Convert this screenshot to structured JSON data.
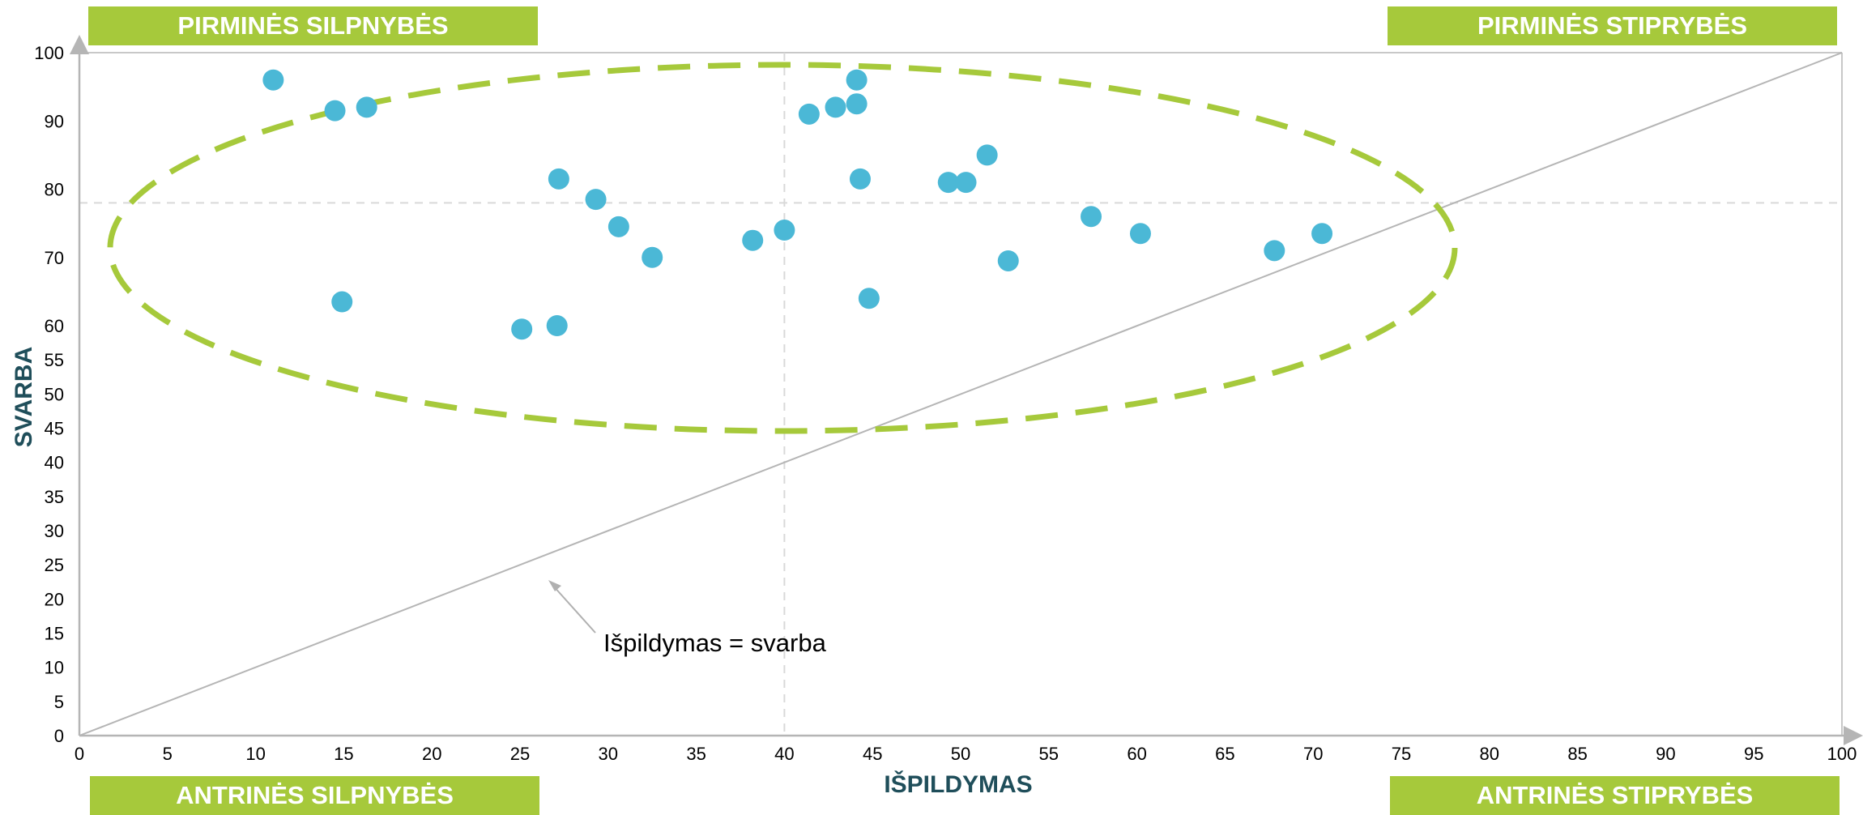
{
  "quadrant_labels": {
    "top_left": "PIRMINĖS SILPNYBĖS",
    "top_right": "PIRMINĖS STIPRYBĖS",
    "bottom_left": "ANTRINĖS SILPNYBĖS",
    "bottom_right": "ANTRINĖS STIPRYBĖS"
  },
  "chart_data": {
    "type": "scatter",
    "title": "",
    "xlabel": "IŠPILDYMAS",
    "ylabel": "SVARBA",
    "xlim": [
      0,
      100
    ],
    "ylim": [
      0,
      100
    ],
    "x_ticks": [
      0,
      5,
      10,
      15,
      20,
      25,
      30,
      35,
      40,
      45,
      50,
      55,
      60,
      65,
      70,
      75,
      80,
      85,
      90,
      95,
      100
    ],
    "y_ticks": [
      0,
      5,
      10,
      15,
      20,
      25,
      30,
      35,
      40,
      45,
      50,
      55,
      60,
      70,
      80,
      90,
      100
    ],
    "y_axis_note": "Y axis spacing is linear from 0 to 60 (step 5) and compressed from 60 to 100 (step 10)",
    "reference_lines": {
      "vertical_x": 40,
      "horizontal_y": 78
    },
    "diagonal_line": {
      "from": [
        0,
        0
      ],
      "to": [
        100,
        100
      ]
    },
    "annotation": "Išpildymas = svarba",
    "point_color": "#4bb8d6",
    "highlight_color": "#a6c93b",
    "points": [
      {
        "x": 11.0,
        "y": 96
      },
      {
        "x": 14.5,
        "y": 91.5
      },
      {
        "x": 16.3,
        "y": 92
      },
      {
        "x": 14.9,
        "y": 63.5
      },
      {
        "x": 25.1,
        "y": 59.5
      },
      {
        "x": 27.1,
        "y": 60
      },
      {
        "x": 27.2,
        "y": 81.5
      },
      {
        "x": 29.3,
        "y": 78.5
      },
      {
        "x": 30.6,
        "y": 74.5
      },
      {
        "x": 32.5,
        "y": 70
      },
      {
        "x": 38.2,
        "y": 72.5
      },
      {
        "x": 40.0,
        "y": 74
      },
      {
        "x": 41.4,
        "y": 91
      },
      {
        "x": 42.9,
        "y": 92
      },
      {
        "x": 44.1,
        "y": 96
      },
      {
        "x": 44.1,
        "y": 92.5
      },
      {
        "x": 44.3,
        "y": 81.5
      },
      {
        "x": 44.8,
        "y": 64
      },
      {
        "x": 49.3,
        "y": 81
      },
      {
        "x": 50.3,
        "y": 81
      },
      {
        "x": 51.5,
        "y": 85
      },
      {
        "x": 52.7,
        "y": 69.5
      },
      {
        "x": 57.4,
        "y": 76
      },
      {
        "x": 60.2,
        "y": 73.5
      },
      {
        "x": 67.8,
        "y": 71
      },
      {
        "x": 70.5,
        "y": 73.5
      }
    ]
  }
}
